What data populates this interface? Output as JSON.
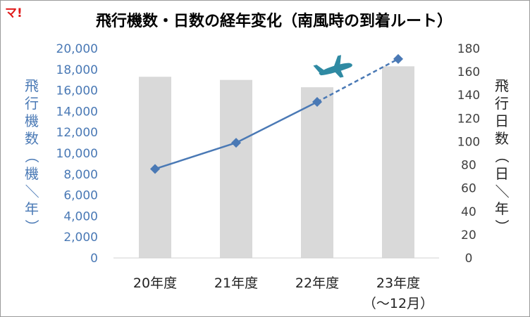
{
  "badge": "マ!",
  "chart_data": {
    "type": "bar+line",
    "title": "飛行機数・日数の経年変化（南風時の到着ルート）",
    "categories": [
      "20年度",
      "21年度",
      "22年度",
      "23年度"
    ],
    "category_sublabels": [
      "",
      "",
      "",
      "（～12月）"
    ],
    "ylabel_left": "飛行機数（機／年）",
    "ylabel_right": "飛行日数（日／年）",
    "left_axis": {
      "ylim": [
        0,
        20000
      ],
      "ticks": [
        "0",
        "2,000",
        "4,000",
        "6,000",
        "8,000",
        "10,000",
        "12,000",
        "14,000",
        "16,000",
        "18,000",
        "20,000"
      ]
    },
    "right_axis": {
      "ylim": [
        0,
        180
      ],
      "ticks": [
        "0",
        "20",
        "40",
        "60",
        "80",
        "100",
        "120",
        "140",
        "160",
        "180"
      ]
    },
    "series": [
      {
        "type": "bar",
        "axis": "left",
        "color": "#d9d9d9",
        "values": [
          17300,
          17000,
          16300,
          18300
        ]
      },
      {
        "type": "line",
        "axis": "left",
        "color": "#4a79b5",
        "values": [
          8500,
          11000,
          14900,
          19000
        ],
        "dashed_last_segment": true
      }
    ],
    "grid": false,
    "legend": "none",
    "axis_label_color": "#4a79b5",
    "airplane_icon": "airplane-icon",
    "airplane_color": "#2f8aa3"
  }
}
